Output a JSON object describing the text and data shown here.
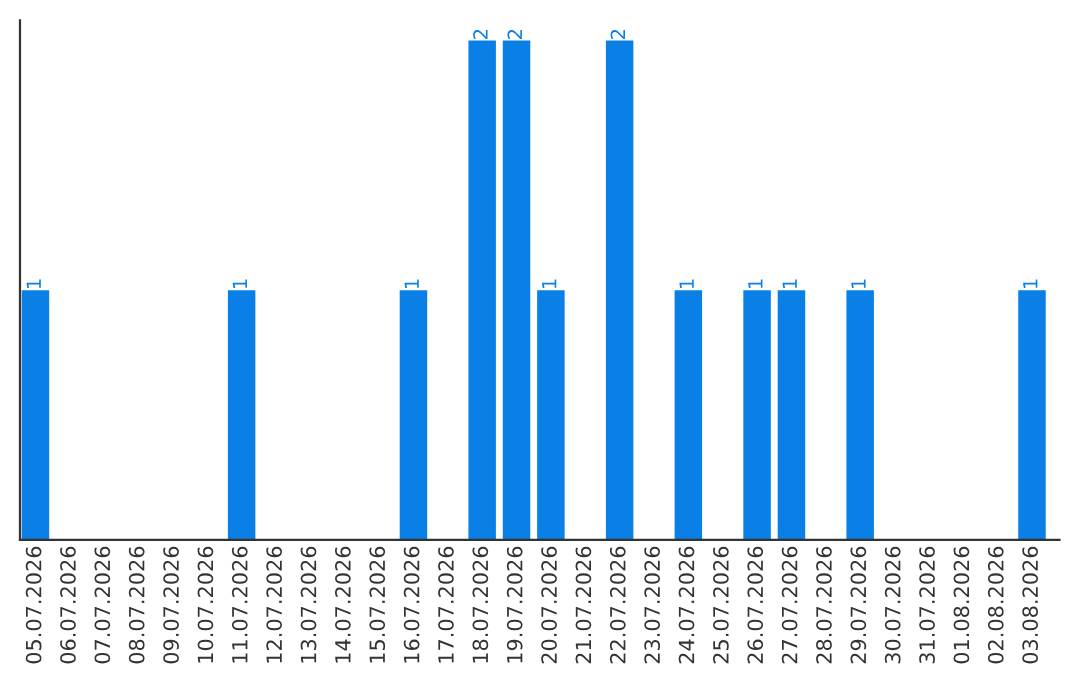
{
  "chart_data": {
    "type": "bar",
    "categories": [
      "05.07.2026",
      "06.07.2026",
      "07.07.2026",
      "08.07.2026",
      "09.07.2026",
      "10.07.2026",
      "11.07.2026",
      "12.07.2026",
      "13.07.2026",
      "14.07.2026",
      "15.07.2026",
      "16.07.2026",
      "17.07.2026",
      "18.07.2026",
      "19.07.2026",
      "20.07.2026",
      "21.07.2026",
      "22.07.2026",
      "23.07.2026",
      "24.07.2026",
      "25.07.2026",
      "26.07.2026",
      "27.07.2026",
      "28.07.2026",
      "29.07.2026",
      "30.07.2026",
      "31.07.2026",
      "01.08.2026",
      "02.08.2026",
      "03.08.2026"
    ],
    "values": [
      1,
      0,
      0,
      0,
      0,
      0,
      1,
      0,
      0,
      0,
      0,
      1,
      0,
      2,
      2,
      1,
      0,
      2,
      0,
      1,
      0,
      1,
      1,
      0,
      1,
      0,
      0,
      0,
      0,
      1
    ],
    "value_labels": [
      "1",
      null,
      null,
      null,
      null,
      null,
      "1",
      null,
      null,
      null,
      null,
      "1",
      null,
      "2",
      "2",
      "1",
      null,
      "2",
      null,
      "1",
      null,
      "1",
      "1",
      null,
      "1",
      null,
      null,
      null,
      null,
      "1"
    ],
    "color": "#0a7fe6",
    "tick_labels": "x",
    "grid": false,
    "legend": false
  }
}
